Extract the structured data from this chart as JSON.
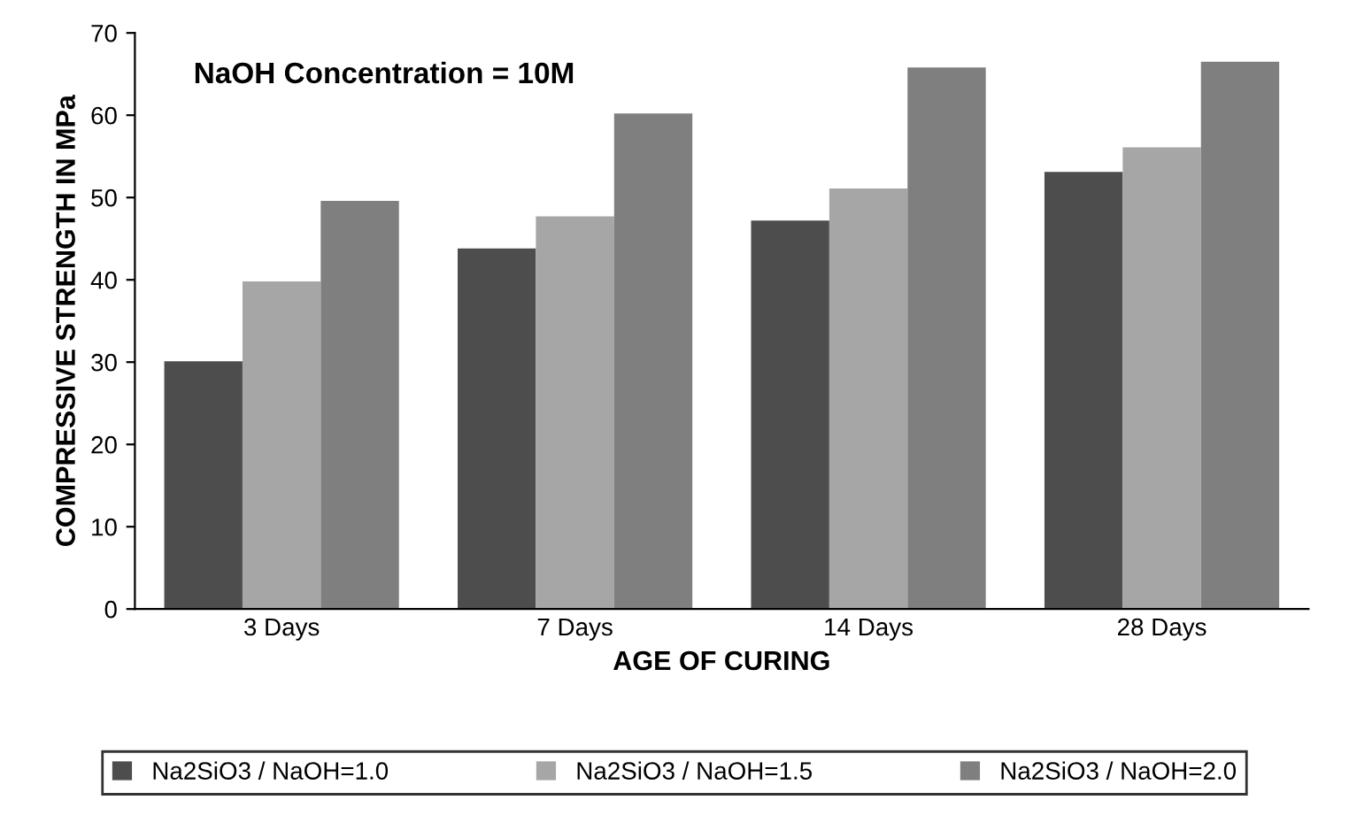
{
  "chart_data": {
    "type": "bar",
    "xlabel": "AGE OF CURING",
    "ylabel": "COMPRESSIVE STRENGTH IN MPa",
    "categories": [
      "3 Days",
      "7 Days",
      "14 Days",
      "28 Days"
    ],
    "series": [
      {
        "name": "Na2SiO3 / NaOH=1.0",
        "color": "#4d4d4d",
        "values": [
          30.1,
          43.8,
          47.2,
          53.1
        ]
      },
      {
        "name": "Na2SiO3 / NaOH=1.5",
        "color": "#a6a6a6",
        "values": [
          39.8,
          47.7,
          51.1,
          56.1
        ]
      },
      {
        "name": "Na2SiO3 / NaOH=2.0",
        "color": "#7f7f7f",
        "values": [
          49.6,
          60.2,
          65.8,
          66.5
        ]
      }
    ],
    "ylim": [
      0,
      70
    ],
    "yticks": [
      0,
      10,
      20,
      30,
      40,
      50,
      60,
      70
    ],
    "grid": false,
    "legend": "bottom",
    "annotations": [
      "NaOH Concentration = 10M"
    ]
  }
}
